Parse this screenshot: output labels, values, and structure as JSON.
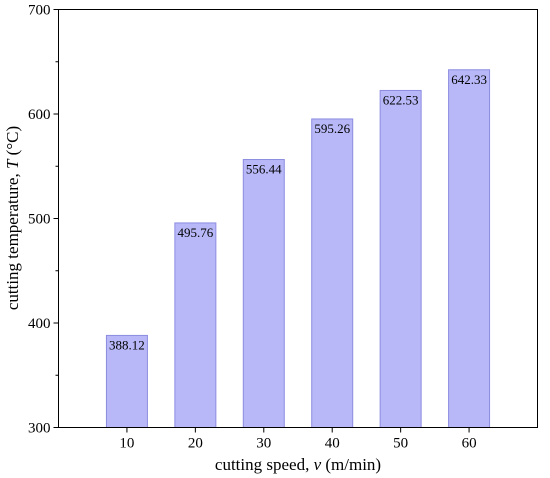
{
  "chart_data": {
    "type": "bar",
    "categories": [
      "10",
      "20",
      "30",
      "40",
      "50",
      "60"
    ],
    "values": [
      388.12,
      495.76,
      556.44,
      595.26,
      622.53,
      642.33
    ],
    "value_labels": [
      "388.12",
      "495.76",
      "556.44",
      "595.26",
      "622.53",
      "642.33"
    ],
    "xlabel": {
      "prefix": "cutting speed, ",
      "var": "v",
      "suffix": " (m/min)"
    },
    "ylabel": {
      "prefix": "cutting temperature, ",
      "var": "T",
      "suffix": " (°C)"
    },
    "ylim": [
      300,
      700
    ],
    "yticks": [
      "300",
      "400",
      "500",
      "600",
      "700"
    ],
    "bar_color": "#b8b8f8",
    "bar_edge_color": "#8c8ce0",
    "grid": false
  }
}
